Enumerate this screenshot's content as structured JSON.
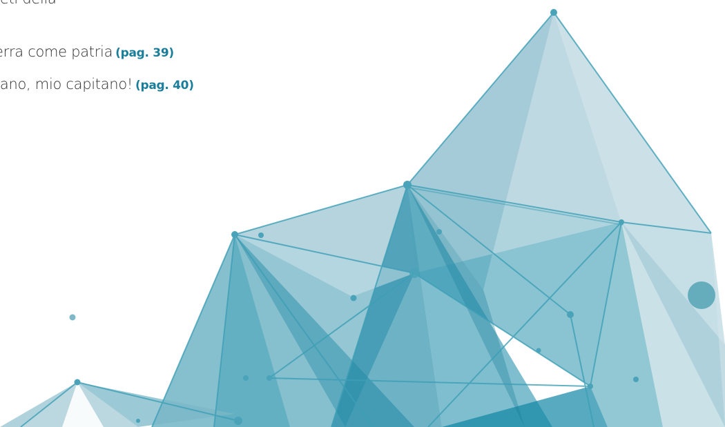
{
  "toc": {
    "items": [
      {
        "text": "reti della",
        "page": ""
      },
      {
        "text": "",
        "page": ""
      },
      {
        "text": "erra come patria",
        "page": "(pag. 39)"
      },
      {
        "text": "tano, mio capitano!",
        "page": "(pag. 40)"
      }
    ]
  },
  "colors": {
    "text": "#2f2f2f",
    "page_ref": "#1a7e9a",
    "teal_dark": "#0f7f9c",
    "teal_mid": "#3aa2b8",
    "teal_light": "#a9ccd8"
  }
}
